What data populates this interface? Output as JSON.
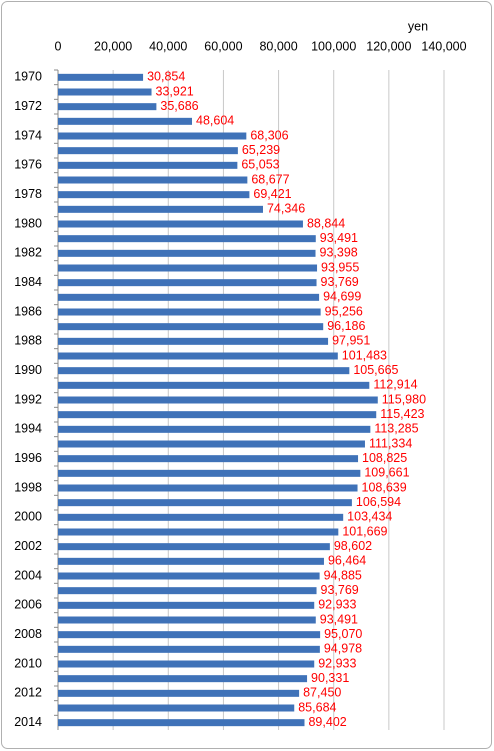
{
  "chart_data": {
    "type": "bar",
    "orientation": "horizontal",
    "x_unit_label": "yen",
    "categories": [
      "1970",
      null,
      "1972",
      null,
      "1974",
      null,
      "1976",
      null,
      "1978",
      null,
      "1980",
      null,
      "1982",
      null,
      "1984",
      null,
      "1986",
      null,
      "1988",
      null,
      "1990",
      null,
      "1992",
      null,
      "1994",
      null,
      "1996",
      null,
      "1998",
      null,
      "2000",
      null,
      "2002",
      null,
      "2004",
      null,
      "2006",
      null,
      "2008",
      null,
      "2010",
      null,
      "2012",
      null,
      "2014"
    ],
    "values": [
      30854,
      33921,
      35686,
      48604,
      68306,
      65239,
      65053,
      68677,
      69421,
      74346,
      88844,
      93491,
      93398,
      93955,
      93769,
      94699,
      95256,
      96186,
      97951,
      101483,
      105665,
      112914,
      115980,
      115423,
      113285,
      111334,
      108825,
      109661,
      108639,
      106594,
      103434,
      101669,
      98602,
      96464,
      94885,
      93769,
      92933,
      93491,
      95070,
      94978,
      92933,
      90331,
      87450,
      85684,
      89402
    ],
    "value_labels": [
      "30,854",
      "33,921",
      "35,686",
      "48,604",
      "68,306",
      "65,239",
      "65,053",
      "68,677",
      "69,421",
      "74,346",
      "88,844",
      "93,491",
      "93,398",
      "93,955",
      "93,769",
      "94,699",
      "95,256",
      "96,186",
      "97,951",
      "101,483",
      "105,665",
      "112,914",
      "115,980",
      "115,423",
      "113,285",
      "111,334",
      "108,825",
      "109,661",
      "108,639",
      "106,594",
      "103,434",
      "101,669",
      "98,602",
      "96,464",
      "94,885",
      "93,769",
      "92,933",
      "93,491",
      "95,070",
      "94,978",
      "92,933",
      "90,331",
      "87,450",
      "85,684",
      "89,402"
    ],
    "color": "#3f72b8",
    "label_color": "#ff0000",
    "xlim": [
      0,
      140000
    ],
    "xticks": [
      0,
      {
        "value": 20000,
        "label": "20,000"
      },
      {
        "value": 40000,
        "label": "40,000"
      },
      {
        "value": 60000,
        "label": "60,000"
      },
      {
        "value": 80000,
        "label": "80,000"
      },
      {
        "value": 100000,
        "label": "100,000"
      },
      {
        "value": 120000,
        "label": "120,000"
      },
      {
        "value": 140000,
        "label": "140,000"
      }
    ],
    "grid": true
  }
}
